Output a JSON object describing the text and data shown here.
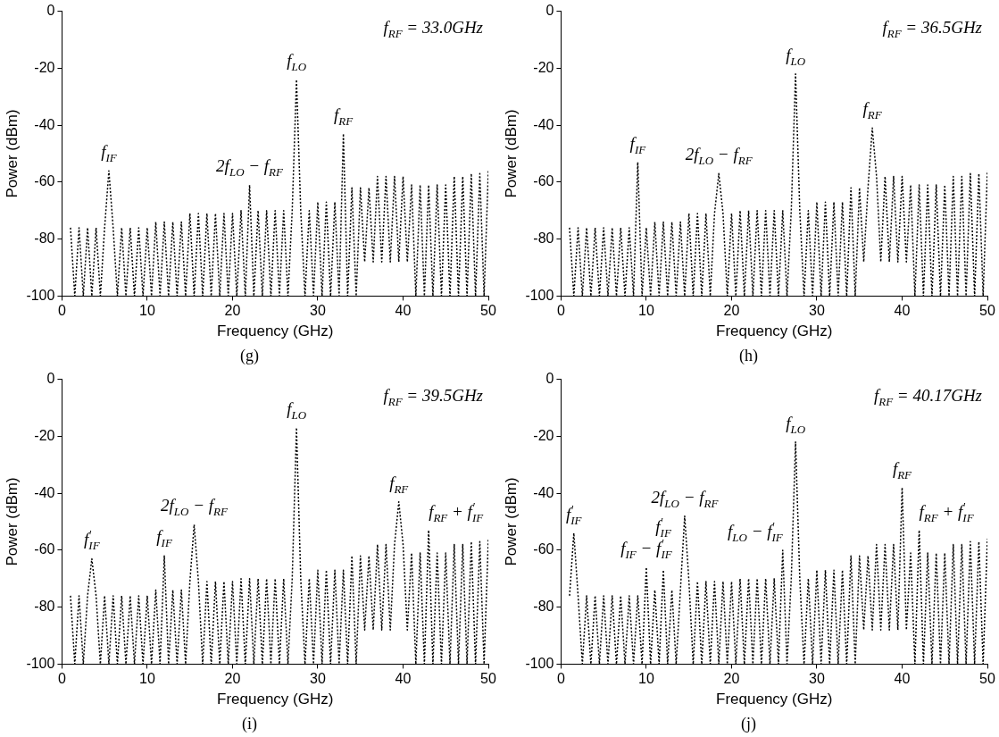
{
  "chart_data": [
    {
      "type": "line",
      "title": "(g)",
      "xlabel": "Frequency (GHz)",
      "ylabel": "Power (dBm)",
      "xlim": [
        0,
        50
      ],
      "xticks": [
        0,
        10,
        20,
        30,
        40,
        50
      ],
      "ylim": [
        -100,
        0
      ],
      "yticks": [
        -100,
        -80,
        -60,
        -40,
        -20,
        0
      ],
      "grid": false,
      "marker": "none",
      "line_style": "dotted",
      "x": [
        1,
        1.5,
        2,
        2.5,
        3,
        3.5,
        4,
        4.5,
        5,
        5.5,
        6,
        6.5,
        7,
        7.5,
        8,
        8.5,
        9,
        9.5,
        10,
        10.5,
        11,
        11.5,
        12,
        12.5,
        13,
        13.5,
        14,
        14.5,
        15,
        15.5,
        16,
        16.5,
        17,
        17.5,
        18,
        18.5,
        19,
        19.5,
        20,
        20.5,
        21,
        21.5,
        22,
        22.5,
        23,
        23.5,
        24,
        24.5,
        25,
        25.5,
        26,
        26.5,
        27,
        27.5,
        28,
        28.5,
        29,
        29.5,
        30,
        30.5,
        31,
        31.5,
        32,
        32.5,
        33,
        33.5,
        34,
        34.5,
        35,
        35.5,
        36,
        36.5,
        37,
        37.5,
        38,
        38.5,
        39,
        39.5,
        40,
        40.5,
        41,
        41.5,
        42,
        42.5,
        43,
        43.5,
        44,
        44.5,
        45,
        45.5,
        46,
        46.5,
        47,
        47.5,
        48,
        48.5,
        49,
        49.5,
        50
      ],
      "series": [
        {
          "color": "#000000",
          "values": [
            -76,
            -100,
            -76,
            -100,
            -76,
            -100,
            -76,
            -100,
            -76,
            -56,
            -76,
            -100,
            -76,
            -100,
            -76,
            -100,
            -76,
            -100,
            -76,
            -100,
            -74,
            -100,
            -74,
            -100,
            -74,
            -100,
            -74,
            -100,
            -71,
            -100,
            -71,
            -100,
            -71,
            -100,
            -71,
            -100,
            -71,
            -100,
            -71,
            -100,
            -70,
            -100,
            -61,
            -100,
            -70,
            -100,
            -70,
            -100,
            -70,
            -100,
            -70,
            -100,
            -70,
            -24,
            -70,
            -100,
            -70,
            -100,
            -67,
            -100,
            -67,
            -100,
            -67,
            -100,
            -43,
            -100,
            -62,
            -100,
            -62,
            -88,
            -62,
            -88,
            -58,
            -88,
            -58,
            -88,
            -58,
            -88,
            -58,
            -88,
            -61,
            -100,
            -61,
            -100,
            -61,
            -100,
            -61,
            -100,
            -61,
            -100,
            -58,
            -100,
            -58,
            -100,
            -57,
            -100,
            -57,
            -100,
            -56
          ]
        }
      ],
      "annotations": [
        "f$_{RF}$ = 33.0GHz",
        {
          "text": "f$_{IF}$",
          "x": 5.5,
          "y": -56
        },
        {
          "text": "2f$_{LO}$ − f$_{RF}$",
          "x": 22,
          "y": -61
        },
        {
          "text": "f$_{LO}$",
          "x": 27.5,
          "y": -24
        },
        {
          "text": "f$_{RF}$",
          "x": 33,
          "y": -43
        }
      ]
    },
    {
      "type": "line",
      "title": "(h)",
      "xlabel": "Frequency (GHz)",
      "ylabel": "Power (dBm)",
      "xlim": [
        0,
        50
      ],
      "xticks": [
        0,
        10,
        20,
        30,
        40,
        50
      ],
      "ylim": [
        -100,
        0
      ],
      "yticks": [
        -100,
        -80,
        -60,
        -40,
        -20,
        0
      ],
      "grid": false,
      "marker": "none",
      "line_style": "dotted",
      "x": [
        1,
        1.5,
        2,
        2.5,
        3,
        3.5,
        4,
        4.5,
        5,
        5.5,
        6,
        6.5,
        7,
        7.5,
        8,
        8.5,
        9,
        9.5,
        10,
        10.5,
        11,
        11.5,
        12,
        12.5,
        13,
        13.5,
        14,
        14.5,
        15,
        15.5,
        16,
        16.5,
        17,
        17.5,
        18,
        18.5,
        19,
        19.5,
        20,
        20.5,
        21,
        21.5,
        22,
        22.5,
        23,
        23.5,
        24,
        24.5,
        25,
        25.5,
        26,
        26.5,
        27,
        27.5,
        28,
        28.5,
        29,
        29.5,
        30,
        30.5,
        31,
        31.5,
        32,
        32.5,
        33,
        33.5,
        34,
        34.5,
        35,
        35.5,
        36,
        36.5,
        37,
        37.5,
        38,
        38.5,
        39,
        39.5,
        40,
        40.5,
        41,
        41.5,
        42,
        42.5,
        43,
        43.5,
        44,
        44.5,
        45,
        45.5,
        46,
        46.5,
        47,
        47.5,
        48,
        48.5,
        49,
        49.5,
        50
      ],
      "series": [
        {
          "color": "#000000",
          "values": [
            -76,
            -100,
            -76,
            -100,
            -76,
            -100,
            -76,
            -100,
            -76,
            -100,
            -76,
            -100,
            -76,
            -100,
            -76,
            -100,
            -53,
            -100,
            -76,
            -100,
            -74,
            -100,
            -74,
            -100,
            -74,
            -100,
            -74,
            -100,
            -71,
            -100,
            -71,
            -100,
            -71,
            -100,
            -71,
            -57,
            -71,
            -100,
            -71,
            -100,
            -70,
            -100,
            -70,
            -100,
            -70,
            -100,
            -70,
            -100,
            -70,
            -100,
            -70,
            -100,
            -70,
            -22,
            -70,
            -100,
            -70,
            -100,
            -67,
            -100,
            -67,
            -100,
            -67,
            -100,
            -67,
            -100,
            -62,
            -100,
            -62,
            -88,
            -62,
            -41,
            -58,
            -88,
            -58,
            -88,
            -58,
            -88,
            -58,
            -88,
            -61,
            -100,
            -61,
            -100,
            -61,
            -100,
            -61,
            -100,
            -61,
            -100,
            -58,
            -100,
            -58,
            -100,
            -57,
            -100,
            -57,
            -100,
            -56
          ]
        }
      ],
      "annotations": [
        "f$_{RF}$ = 36.5GHz",
        {
          "text": "f$_{IF}$",
          "x": 9,
          "y": -53
        },
        {
          "text": "2f$_{LO}$ − f$_{RF}$",
          "x": 18.5,
          "y": -57
        },
        {
          "text": "f$_{LO}$",
          "x": 27.5,
          "y": -22
        },
        {
          "text": "f$_{RF}$",
          "x": 36.5,
          "y": -41
        }
      ]
    },
    {
      "type": "line",
      "title": "(i)",
      "xlabel": "Frequency (GHz)",
      "ylabel": "Power (dBm)",
      "xlim": [
        0,
        50
      ],
      "xticks": [
        0,
        10,
        20,
        30,
        40,
        50
      ],
      "ylim": [
        -100,
        0
      ],
      "yticks": [
        -100,
        -80,
        -60,
        -40,
        -20,
        0
      ],
      "grid": false,
      "marker": "none",
      "line_style": "dotted",
      "x": [
        1,
        1.5,
        2,
        2.5,
        3,
        3.5,
        4,
        4.5,
        5,
        5.5,
        6,
        6.5,
        7,
        7.5,
        8,
        8.5,
        9,
        9.5,
        10,
        10.5,
        11,
        11.5,
        12,
        12.5,
        13,
        13.5,
        14,
        14.5,
        15,
        15.5,
        16,
        16.5,
        17,
        17.5,
        18,
        18.5,
        19,
        19.5,
        20,
        20.5,
        21,
        21.5,
        22,
        22.5,
        23,
        23.5,
        24,
        24.5,
        25,
        25.5,
        26,
        26.5,
        27,
        27.5,
        28,
        28.5,
        29,
        29.5,
        30,
        30.5,
        31,
        31.5,
        32,
        32.5,
        33,
        33.5,
        34,
        34.5,
        35,
        35.5,
        36,
        36.5,
        37,
        37.5,
        38,
        38.5,
        39,
        39.5,
        40,
        40.5,
        41,
        41.5,
        42,
        42.5,
        43,
        43.5,
        44,
        44.5,
        45,
        45.5,
        46,
        46.5,
        47,
        47.5,
        48,
        48.5,
        49,
        49.5,
        50
      ],
      "series": [
        {
          "color": "#000000",
          "values": [
            -76,
            -100,
            -76,
            -100,
            -76,
            -63,
            -76,
            -100,
            -76,
            -100,
            -76,
            -100,
            -76,
            -100,
            -76,
            -100,
            -76,
            -100,
            -76,
            -100,
            -74,
            -100,
            -62,
            -100,
            -74,
            -100,
            -74,
            -100,
            -71,
            -51,
            -71,
            -100,
            -71,
            -100,
            -71,
            -100,
            -71,
            -100,
            -71,
            -100,
            -70,
            -100,
            -70,
            -100,
            -70,
            -100,
            -70,
            -100,
            -70,
            -100,
            -70,
            -100,
            -70,
            -17,
            -70,
            -100,
            -70,
            -100,
            -67,
            -100,
            -67,
            -100,
            -67,
            -100,
            -67,
            -100,
            -62,
            -100,
            -62,
            -88,
            -62,
            -88,
            -58,
            -88,
            -58,
            -88,
            -58,
            -43,
            -58,
            -88,
            -61,
            -100,
            -61,
            -100,
            -53,
            -100,
            -61,
            -100,
            -61,
            -100,
            -58,
            -100,
            -58,
            -100,
            -57,
            -100,
            -57,
            -100,
            -56
          ]
        }
      ],
      "annotations": [
        "f$_{RF}$ = 39.5GHz",
        {
          "text": "f$_{IF}$$^{'}$",
          "x": 3.5,
          "y": -63
        },
        {
          "text": "f$_{IF}$",
          "x": 12,
          "y": -62
        },
        {
          "text": "2f$_{LO}$ − f$_{RF}$",
          "x": 15.5,
          "y": -51
        },
        {
          "text": "f$_{LO}$",
          "x": 27.5,
          "y": -17
        },
        {
          "text": "f$_{RF}$",
          "x": 39.5,
          "y": -43
        },
        {
          "text": "f$_{RF}$ + f$_{IF}$$^{'}$",
          "x": 43,
          "y": -53
        }
      ]
    },
    {
      "type": "line",
      "title": "(j)",
      "xlabel": "Frequency (GHz)",
      "ylabel": "Power (dBm)",
      "xlim": [
        0,
        50
      ],
      "xticks": [
        0,
        10,
        20,
        30,
        40,
        50
      ],
      "ylim": [
        -100,
        0
      ],
      "yticks": [
        -100,
        -80,
        -60,
        -40,
        -20,
        0
      ],
      "grid": false,
      "marker": "none",
      "line_style": "dotted",
      "x": [
        1,
        1.5,
        2,
        2.5,
        3,
        3.5,
        4,
        4.5,
        5,
        5.5,
        6,
        6.5,
        7,
        7.5,
        8,
        8.5,
        9,
        9.5,
        10,
        10.5,
        11,
        11.5,
        12,
        12.5,
        13,
        13.5,
        14,
        14.5,
        15,
        15.5,
        16,
        16.5,
        17,
        17.5,
        18,
        18.5,
        19,
        19.5,
        20,
        20.5,
        21,
        21.5,
        22,
        22.5,
        23,
        23.5,
        24,
        24.5,
        25,
        25.5,
        26,
        26.5,
        27,
        27.5,
        28,
        28.5,
        29,
        29.5,
        30,
        30.5,
        31,
        31.5,
        32,
        32.5,
        33,
        33.5,
        34,
        34.5,
        35,
        35.5,
        36,
        36.5,
        37,
        37.5,
        38,
        38.5,
        39,
        39.5,
        40,
        40.5,
        41,
        41.5,
        42,
        42.5,
        43,
        43.5,
        44,
        44.5,
        45,
        45.5,
        46,
        46.5,
        47,
        47.5,
        48,
        48.5,
        49,
        49.5,
        50
      ],
      "series": [
        {
          "color": "#000000",
          "values": [
            -76,
            -54,
            -76,
            -100,
            -76,
            -100,
            -76,
            -100,
            -76,
            -100,
            -76,
            -100,
            -76,
            -100,
            -76,
            -100,
            -76,
            -100,
            -66,
            -100,
            -74,
            -100,
            -67,
            -100,
            -74,
            -100,
            -74,
            -48,
            -71,
            -100,
            -71,
            -100,
            -71,
            -100,
            -71,
            -100,
            -71,
            -100,
            -71,
            -100,
            -70,
            -100,
            -70,
            -100,
            -70,
            -100,
            -70,
            -100,
            -70,
            -100,
            -60,
            -100,
            -70,
            -22,
            -70,
            -100,
            -70,
            -100,
            -67,
            -100,
            -67,
            -100,
            -67,
            -100,
            -67,
            -100,
            -62,
            -100,
            -62,
            -88,
            -62,
            -88,
            -58,
            -88,
            -58,
            -88,
            -58,
            -88,
            -38,
            -88,
            -61,
            -100,
            -53,
            -100,
            -61,
            -100,
            -61,
            -100,
            -61,
            -100,
            -58,
            -100,
            -58,
            -100,
            -57,
            -100,
            -57,
            -100,
            -56
          ]
        }
      ],
      "annotations": [
        "f$_{RF}$ = 40.17GHz",
        {
          "text": "f$_{IF}$$^{'}$",
          "x": 1.5,
          "y": -54
        },
        {
          "text": "f$_{IF}$ − f$_{IF}$$^{'}$",
          "x": 10,
          "y": -66
        },
        {
          "text": "f$_{IF}$$^{'}$",
          "x": 12,
          "y": -67
        },
        {
          "text": "2f$_{LO}$ − f$_{RF}$",
          "x": 14.5,
          "y": -48
        },
        {
          "text": "f$_{LO}$ − f$_{IF}$$^{'}$",
          "x": 26,
          "y": -60
        },
        {
          "text": "f$_{LO}$",
          "x": 27.5,
          "y": -22
        },
        {
          "text": "f$_{RF}$",
          "x": 40,
          "y": -38
        },
        {
          "text": "f$_{RF}$ + f$_{IF}$$^{'}$",
          "x": 42,
          "y": -53
        }
      ]
    }
  ]
}
